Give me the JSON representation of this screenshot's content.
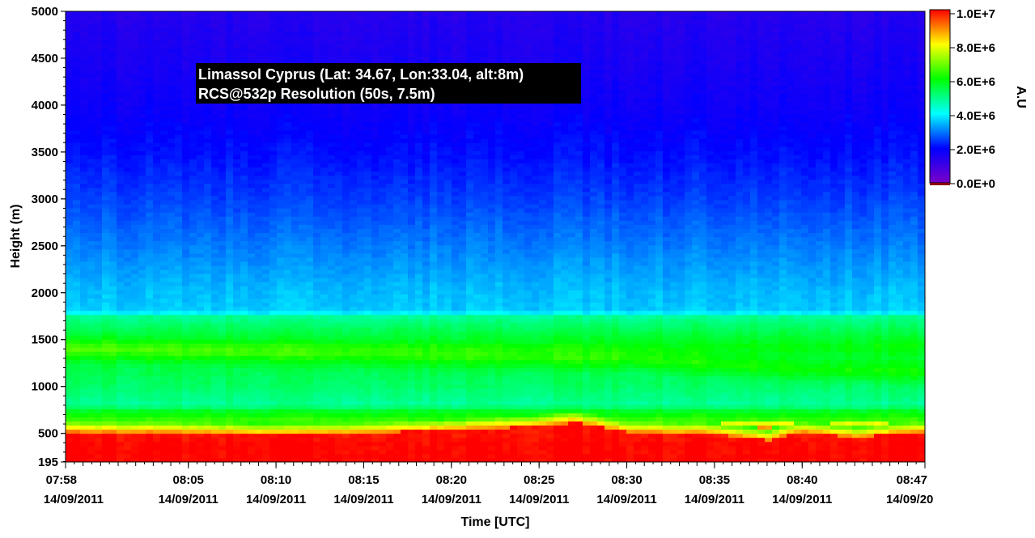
{
  "chart_data": {
    "type": "heatmap",
    "annotation": [
      "Limassol Cyprus (Lat: 34.67, Lon:33.04, alt:8m)",
      "RCS@532p Resolution (50s, 7.5m)"
    ],
    "xlabel": "Time [UTC]",
    "ylabel": "Height (m)",
    "colorbar_label": "A.U",
    "xlim": [
      "07:58",
      "08:47"
    ],
    "ylim": [
      195,
      5000
    ],
    "x_ticks": [
      {
        "time": "07:58",
        "date": "14/09/2011"
      },
      {
        "time": "08:05",
        "date": "14/09/2011"
      },
      {
        "time": "08:10",
        "date": "14/09/2011"
      },
      {
        "time": "08:15",
        "date": "14/09/2011"
      },
      {
        "time": "08:20",
        "date": "14/09/2011"
      },
      {
        "time": "08:25",
        "date": "14/09/2011"
      },
      {
        "time": "08:30",
        "date": "14/09/2011"
      },
      {
        "time": "08:35",
        "date": "14/09/2011"
      },
      {
        "time": "08:40",
        "date": "14/09/2011"
      },
      {
        "time": "08:47",
        "date": "14/09/20"
      }
    ],
    "y_ticks": [
      "195",
      "500",
      "1000",
      "1500",
      "2000",
      "2500",
      "3000",
      "3500",
      "4000",
      "4500",
      "5000"
    ],
    "colorbar_ticks": [
      "1.0E+7",
      "8.0E+6",
      "6.0E+6",
      "4.0E+6",
      "2.0E+6",
      "0.0E+0"
    ],
    "colorbar_range": [
      0,
      10000000
    ],
    "colormap": [
      "#7a00c8",
      "#0000ff",
      "#00ffff",
      "#00ff00",
      "#ffff00",
      "#ff0000"
    ],
    "profile_heights": [
      195,
      400,
      520,
      600,
      650,
      760,
      800,
      900,
      1000,
      1100,
      1300,
      1420,
      1600,
      1760,
      1800,
      2000,
      2500,
      3000,
      3500,
      4000,
      4500,
      5000
    ],
    "profile_values": [
      10000000,
      10000000,
      9800000,
      8200000,
      6400000,
      5600000,
      4800000,
      5000000,
      5200000,
      5300000,
      5600000,
      6000000,
      5400000,
      4800000,
      3600000,
      3500000,
      3000000,
      2500000,
      2100000,
      1800000,
      1600000,
      1400000
    ],
    "red_layer_top_m": [
      {
        "time": "07:58",
        "height": 520
      },
      {
        "time": "08:05",
        "height": 510
      },
      {
        "time": "08:10",
        "height": 490
      },
      {
        "time": "08:15",
        "height": 510
      },
      {
        "time": "08:20",
        "height": 540
      },
      {
        "time": "08:25",
        "height": 580
      },
      {
        "time": "08:27",
        "height": 620
      },
      {
        "time": "08:30",
        "height": 520
      },
      {
        "time": "08:35",
        "height": 500
      },
      {
        "time": "08:38",
        "height": 430
      },
      {
        "time": "08:40",
        "height": 520
      },
      {
        "time": "08:43",
        "height": 460
      },
      {
        "time": "08:47",
        "height": 520
      }
    ],
    "green_layer_center_m": [
      {
        "time": "07:58",
        "height": 1400
      },
      {
        "time": "08:20",
        "height": 1320
      },
      {
        "time": "08:30",
        "height": 1300
      },
      {
        "time": "08:40",
        "height": 1180
      },
      {
        "time": "08:47",
        "height": 1150
      }
    ]
  }
}
